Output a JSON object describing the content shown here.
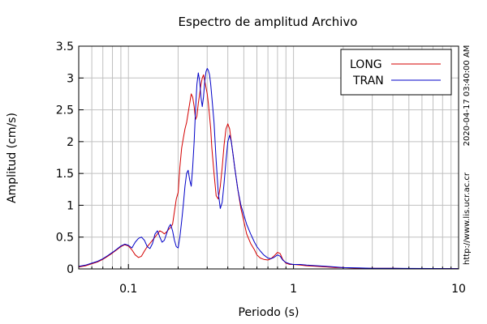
{
  "chart_data": {
    "type": "line",
    "title": "Espectro de amplitud Archivo",
    "xlabel": "Periodo (s)",
    "ylabel": "Amplitud (cm/s)",
    "x_scale": "log",
    "xlim": [
      0.05,
      10
    ],
    "ylim": [
      0,
      3.5
    ],
    "grid": true,
    "legend_position": "top-right",
    "x_ticks": [
      {
        "value": 0.1,
        "label": "0.1"
      },
      {
        "value": 1,
        "label": "1"
      },
      {
        "value": 10,
        "label": "10"
      }
    ],
    "y_ticks": [
      {
        "value": 0,
        "label": "0"
      },
      {
        "value": 0.5,
        "label": "0.5"
      },
      {
        "value": 1,
        "label": "1"
      },
      {
        "value": 1.5,
        "label": "1.5"
      },
      {
        "value": 2,
        "label": "2"
      },
      {
        "value": 2.5,
        "label": "2.5"
      },
      {
        "value": 3,
        "label": "3"
      },
      {
        "value": 3.5,
        "label": "3.5"
      }
    ],
    "series": [
      {
        "name": "LONG",
        "color": "#d40000",
        "x": [
          0.05,
          0.055,
          0.06,
          0.065,
          0.07,
          0.075,
          0.08,
          0.085,
          0.09,
          0.095,
          0.1,
          0.105,
          0.11,
          0.115,
          0.12,
          0.125,
          0.13,
          0.135,
          0.14,
          0.145,
          0.15,
          0.155,
          0.16,
          0.165,
          0.17,
          0.175,
          0.18,
          0.185,
          0.19,
          0.195,
          0.2,
          0.205,
          0.21,
          0.215,
          0.22,
          0.225,
          0.23,
          0.235,
          0.24,
          0.245,
          0.25,
          0.255,
          0.26,
          0.265,
          0.27,
          0.275,
          0.28,
          0.285,
          0.29,
          0.295,
          0.3,
          0.305,
          0.31,
          0.315,
          0.32,
          0.33,
          0.34,
          0.35,
          0.36,
          0.37,
          0.38,
          0.39,
          0.4,
          0.41,
          0.42,
          0.43,
          0.44,
          0.46,
          0.48,
          0.5,
          0.52,
          0.55,
          0.58,
          0.6,
          0.63,
          0.66,
          0.7,
          0.73,
          0.76,
          0.8,
          0.83,
          0.86,
          0.9,
          0.95,
          1.0,
          1.1,
          1.2,
          1.4,
          1.6,
          1.8,
          2.0,
          2.5,
          3,
          4,
          5,
          7,
          10
        ],
        "y": [
          0.03,
          0.05,
          0.08,
          0.11,
          0.15,
          0.2,
          0.25,
          0.3,
          0.35,
          0.38,
          0.36,
          0.3,
          0.22,
          0.18,
          0.2,
          0.28,
          0.35,
          0.4,
          0.45,
          0.5,
          0.55,
          0.6,
          0.58,
          0.55,
          0.58,
          0.62,
          0.65,
          0.7,
          0.9,
          1.1,
          1.2,
          1.6,
          1.9,
          2.05,
          2.2,
          2.3,
          2.45,
          2.6,
          2.75,
          2.7,
          2.55,
          2.35,
          2.4,
          2.6,
          2.75,
          2.9,
          3.0,
          3.05,
          2.95,
          2.85,
          2.75,
          2.6,
          2.4,
          2.2,
          1.9,
          1.5,
          1.15,
          1.1,
          1.3,
          1.6,
          1.95,
          2.2,
          2.28,
          2.2,
          2.0,
          1.8,
          1.6,
          1.25,
          0.95,
          0.75,
          0.55,
          0.4,
          0.3,
          0.22,
          0.17,
          0.15,
          0.14,
          0.16,
          0.2,
          0.26,
          0.24,
          0.15,
          0.09,
          0.07,
          0.07,
          0.06,
          0.05,
          0.04,
          0.03,
          0.02,
          0.02,
          0.01,
          0.01,
          0.01,
          0.005,
          0.005,
          0.005
        ]
      },
      {
        "name": "TRAN",
        "color": "#0000c8",
        "x": [
          0.05,
          0.055,
          0.06,
          0.065,
          0.07,
          0.075,
          0.08,
          0.085,
          0.09,
          0.095,
          0.1,
          0.105,
          0.11,
          0.115,
          0.12,
          0.125,
          0.13,
          0.135,
          0.14,
          0.145,
          0.15,
          0.155,
          0.16,
          0.165,
          0.17,
          0.175,
          0.18,
          0.185,
          0.19,
          0.195,
          0.2,
          0.205,
          0.21,
          0.215,
          0.22,
          0.225,
          0.23,
          0.235,
          0.24,
          0.245,
          0.25,
          0.255,
          0.26,
          0.265,
          0.27,
          0.275,
          0.28,
          0.285,
          0.29,
          0.295,
          0.3,
          0.305,
          0.31,
          0.315,
          0.32,
          0.33,
          0.34,
          0.35,
          0.36,
          0.37,
          0.38,
          0.39,
          0.4,
          0.41,
          0.42,
          0.43,
          0.44,
          0.46,
          0.48,
          0.5,
          0.52,
          0.55,
          0.58,
          0.6,
          0.63,
          0.66,
          0.7,
          0.73,
          0.76,
          0.8,
          0.83,
          0.86,
          0.9,
          0.95,
          1.0,
          1.1,
          1.2,
          1.4,
          1.6,
          1.8,
          2.0,
          2.5,
          3,
          4,
          5,
          7,
          10
        ],
        "y": [
          0.04,
          0.06,
          0.09,
          0.12,
          0.16,
          0.21,
          0.26,
          0.31,
          0.36,
          0.39,
          0.37,
          0.33,
          0.42,
          0.48,
          0.5,
          0.45,
          0.35,
          0.32,
          0.4,
          0.55,
          0.6,
          0.5,
          0.42,
          0.45,
          0.55,
          0.65,
          0.7,
          0.6,
          0.45,
          0.35,
          0.33,
          0.5,
          0.75,
          1.0,
          1.3,
          1.5,
          1.55,
          1.4,
          1.3,
          1.6,
          2.0,
          2.5,
          2.9,
          3.08,
          2.95,
          2.7,
          2.55,
          2.7,
          2.95,
          3.1,
          3.15,
          3.12,
          3.05,
          2.9,
          2.7,
          2.3,
          1.7,
          1.2,
          0.95,
          1.05,
          1.35,
          1.7,
          2.0,
          2.1,
          2.0,
          1.8,
          1.6,
          1.25,
          1.0,
          0.85,
          0.7,
          0.55,
          0.42,
          0.35,
          0.28,
          0.22,
          0.17,
          0.16,
          0.18,
          0.22,
          0.2,
          0.14,
          0.1,
          0.08,
          0.07,
          0.07,
          0.06,
          0.05,
          0.04,
          0.03,
          0.02,
          0.015,
          0.01,
          0.01,
          0.008,
          0.006,
          0.005
        ]
      }
    ],
    "side_text": [
      "2020-04-17 03:40:00 AM",
      "http://www.lis.ucr.ac.cr"
    ]
  }
}
